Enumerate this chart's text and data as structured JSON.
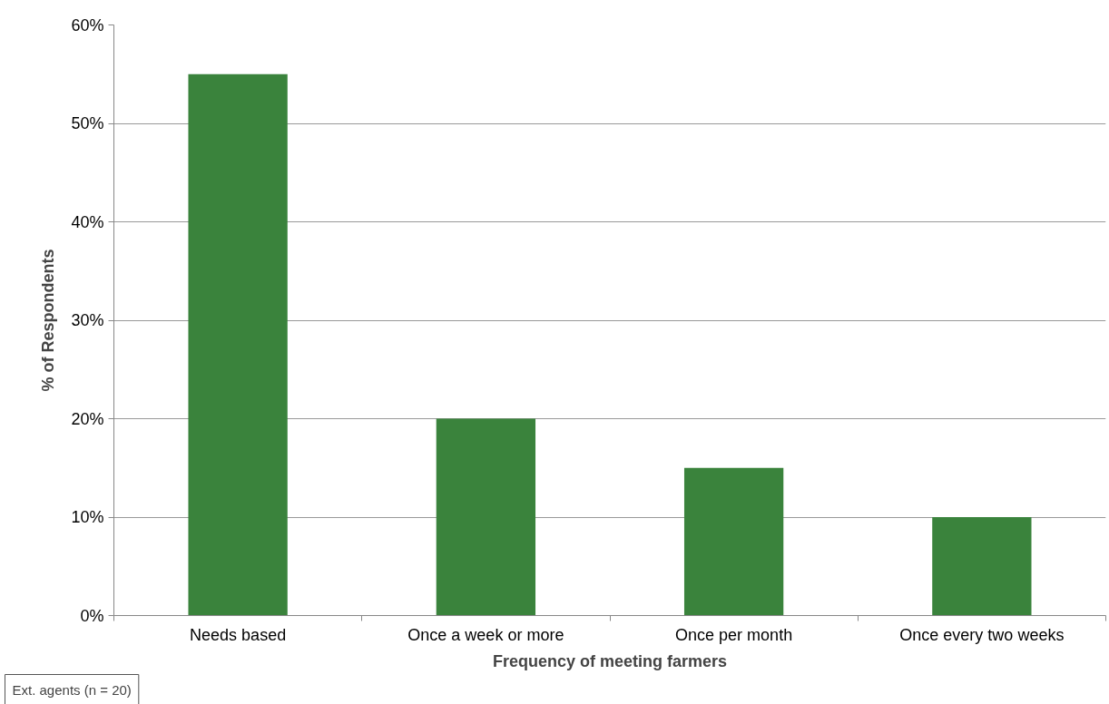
{
  "chart_data": {
    "type": "bar",
    "xlabel": "Frequency of meeting farmers",
    "ylabel": "% of Respondents",
    "categories": [
      "Needs based",
      "Once a week or more",
      "Once per month",
      "Once every two weeks"
    ],
    "values": [
      55,
      20,
      15,
      10
    ],
    "color": "#3a833c",
    "ylim": [
      0,
      60
    ],
    "yticks": [
      {
        "value": 0,
        "label": "0%"
      },
      {
        "value": 10,
        "label": "10%"
      },
      {
        "value": 20,
        "label": "20%"
      },
      {
        "value": 30,
        "label": "30%"
      },
      {
        "value": 40,
        "label": "40%"
      },
      {
        "value": 50,
        "label": "50%"
      },
      {
        "value": 60,
        "label": "60%"
      }
    ],
    "grid": "y",
    "annotations": [
      "Ext. agents (n = 20)"
    ]
  }
}
